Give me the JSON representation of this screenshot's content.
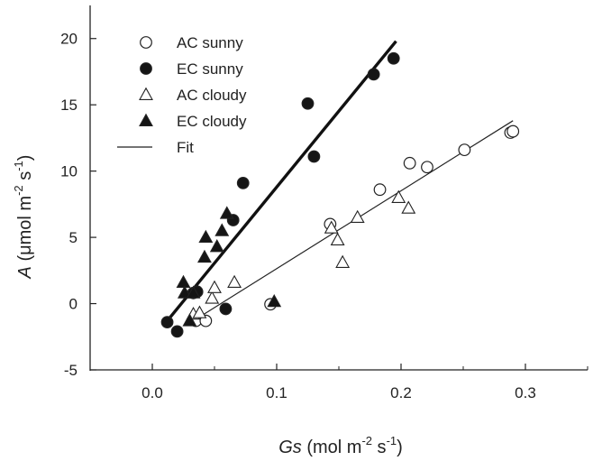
{
  "chart_data": {
    "type": "scatter",
    "xlabel": {
      "italic": "Gs",
      "pre": " (mol m",
      "sup1": "-2",
      "mid": " s",
      "sup2": "-1",
      "post": ")"
    },
    "ylabel": {
      "italic": "A",
      "pre": " (",
      "mu": "μ",
      "pre2": "mol m",
      "sup1": "-2",
      "mid": " s",
      "sup2": "-1",
      "post": ")"
    },
    "xlim": [
      -0.05,
      0.35
    ],
    "ylim": [
      -5,
      22.5
    ],
    "x_ticks": [
      0.0,
      0.1,
      0.2,
      0.3
    ],
    "x_tick_labels": [
      "0.0",
      "0.1",
      "0.2",
      "0.3"
    ],
    "y_ticks": [
      -5,
      0,
      5,
      10,
      15,
      20
    ],
    "y_tick_labels": [
      "-5",
      "0",
      "5",
      "10",
      "15",
      "20"
    ],
    "grid": false,
    "legend_position": "top-left",
    "series": [
      {
        "name": "AC sunny",
        "marker": "circle-open",
        "color": "#222222",
        "points": [
          [
            0.035,
            -1.3
          ],
          [
            0.043,
            -1.3
          ],
          [
            0.095,
            -0.05
          ],
          [
            0.143,
            6.0
          ],
          [
            0.183,
            8.6
          ],
          [
            0.207,
            10.6
          ],
          [
            0.221,
            10.3
          ],
          [
            0.251,
            11.6
          ],
          [
            0.288,
            12.9
          ],
          [
            0.29,
            13.0
          ]
        ]
      },
      {
        "name": "EC sunny",
        "marker": "circle-filled",
        "color": "#1a1a1a",
        "points": [
          [
            0.012,
            -1.4
          ],
          [
            0.02,
            -2.1
          ],
          [
            0.033,
            0.8
          ],
          [
            0.036,
            0.9
          ],
          [
            0.059,
            -0.4
          ],
          [
            0.065,
            6.3
          ],
          [
            0.073,
            9.1
          ],
          [
            0.125,
            15.1
          ],
          [
            0.13,
            11.1
          ],
          [
            0.178,
            17.3
          ],
          [
            0.194,
            18.5
          ]
        ]
      },
      {
        "name": "AC cloudy",
        "marker": "triangle-open",
        "color": "#222222",
        "points": [
          [
            0.033,
            -0.8
          ],
          [
            0.038,
            -0.7
          ],
          [
            0.048,
            0.4
          ],
          [
            0.05,
            1.2
          ],
          [
            0.066,
            1.6
          ],
          [
            0.144,
            5.7
          ],
          [
            0.149,
            4.8
          ],
          [
            0.153,
            3.1
          ],
          [
            0.165,
            6.5
          ],
          [
            0.198,
            8.0
          ],
          [
            0.206,
            7.2
          ]
        ]
      },
      {
        "name": "EC cloudy",
        "marker": "triangle-filled",
        "color": "#1a1a1a",
        "points": [
          [
            0.025,
            1.6
          ],
          [
            0.026,
            0.8
          ],
          [
            0.03,
            -1.3
          ],
          [
            0.033,
            0.8
          ],
          [
            0.042,
            3.5
          ],
          [
            0.043,
            5.0
          ],
          [
            0.052,
            4.3
          ],
          [
            0.056,
            5.5
          ],
          [
            0.06,
            6.8
          ],
          [
            0.098,
            0.15
          ]
        ]
      }
    ],
    "fit_lines": [
      {
        "name": "EC fit",
        "x1": 0.012,
        "y1": -1.3,
        "x2": 0.196,
        "y2": 19.8,
        "stroke": "#111111",
        "weight": "thick"
      },
      {
        "name": "AC fit",
        "x1": 0.033,
        "y1": -1.3,
        "x2": 0.29,
        "y2": 13.8,
        "stroke": "#222222",
        "weight": "thin"
      }
    ],
    "legend": [
      {
        "label": "AC sunny",
        "marker": "circle-open"
      },
      {
        "label": "EC sunny",
        "marker": "circle-filled"
      },
      {
        "label": "AC cloudy",
        "marker": "triangle-open"
      },
      {
        "label": "EC cloudy",
        "marker": "triangle-filled"
      },
      {
        "label": "Fit",
        "marker": "line"
      }
    ]
  }
}
